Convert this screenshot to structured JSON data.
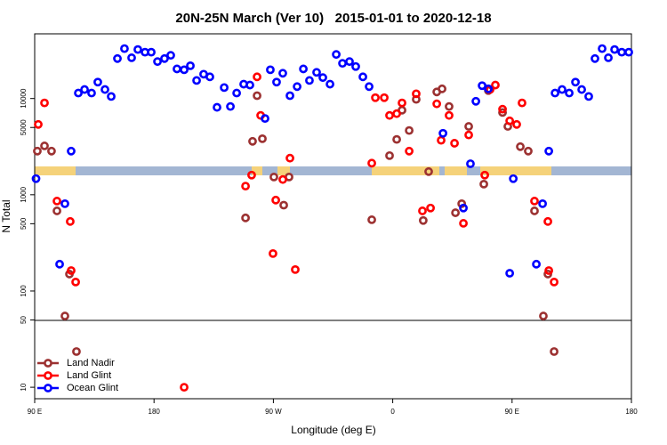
{
  "chart_data": {
    "type": "scatter",
    "title": "20N-25N March (Ver 10)   2015-01-01 to 2020-12-18",
    "x_label": "Longitude (deg E)",
    "y_label": "N Total",
    "log_y": true,
    "legend": "lower left",
    "xlim": [
      90,
      540
    ],
    "xticks": [
      {
        "value": 90,
        "label": "90 E"
      },
      180,
      {
        "value": 270,
        "label": "90 W"
      },
      {
        "value": 360,
        "label": "0"
      },
      {
        "value": 450,
        "label": "90 E"
      },
      {
        "value": 540,
        "label": "180"
      }
    ],
    "ylim": [
      7.6,
      47000
    ],
    "yticks": [
      10,
      50,
      100,
      500,
      1000,
      5000,
      10000
    ],
    "series": [
      {
        "name": "Land Nadir",
        "color": "#9c3131",
        "x": [
          92,
          97.4,
          102.7,
          106.8,
          112.8,
          116.2,
          121.5,
          249,
          254.3,
          257.7,
          261.7,
          270.4,
          277.8,
          281.8,
          344.2,
          357.6,
          363,
          367,
          372.4,
          377.7,
          387.1,
          383,
          393.2,
          397.2,
          402.5,
          407.3,
          412,
          417.3,
          428.7,
          432.1,
          442.8,
          446.8,
          456.2,
          462.2,
          466.9,
          473.6,
          477,
          481.7
        ],
        "values": [
          2840,
          3220,
          2840,
          680,
          55,
          150,
          23.5,
          575,
          3590,
          10700,
          3820,
          1530,
          780,
          1530,
          550,
          2550,
          3760,
          7560,
          4650,
          9800,
          1740,
          540,
          11700,
          12600,
          8260,
          650,
          807,
          5130,
          1290,
          12100,
          7160,
          5130,
          3160,
          2840,
          680,
          55,
          150,
          23.5
        ]
      },
      {
        "name": "Land Glint",
        "color": "#ff0000",
        "x": [
          92.7,
          97.4,
          106.8,
          116.8,
          117.5,
          120.9,
          202.7,
          249,
          253.6,
          257.7,
          260.4,
          271.8,
          269.7,
          277.1,
          282.5,
          286.5,
          344.2,
          346.9,
          353.6,
          357.6,
          363,
          367,
          372.4,
          377.7,
          382.4,
          388.5,
          393.2,
          396.5,
          402.5,
          406.6,
          413.3,
          417.3,
          429.4,
          433.4,
          437.4,
          442.8,
          448.2,
          453.5,
          457.5,
          466.9,
          477,
          477.7,
          481.7
        ],
        "values": [
          5380,
          9000,
          860,
          528,
          163,
          124,
          10,
          1230,
          1600,
          16800,
          6670,
          880,
          245,
          1440,
          2400,
          167,
          2130,
          10200,
          10200,
          6670,
          6960,
          9000,
          2840,
          11200,
          680,
          728,
          8800,
          3680,
          6670,
          3430,
          505,
          4180,
          1600,
          12400,
          13800,
          7750,
          5860,
          5380,
          9000,
          860,
          528,
          163,
          124
        ]
      },
      {
        "name": "Ocean Glint",
        "color": "#0000ff",
        "x": [
          91,
          112.8,
          108.8,
          117.5,
          122.9,
          127.6,
          132.9,
          137.6,
          143,
          147.7,
          152.4,
          157.7,
          163.1,
          167.8,
          173.2,
          177.9,
          182.6,
          187.9,
          192.6,
          197.3,
          202.7,
          207.4,
          212.1,
          217.4,
          222.1,
          227.5,
          232.9,
          237.6,
          242.3,
          247.6,
          252.3,
          263.7,
          267.7,
          272.4,
          277.1,
          282.5,
          287.9,
          292.6,
          297.2,
          302.6,
          307.3,
          312.7,
          317.4,
          322.1,
          327.4,
          332.1,
          337.5,
          342.2,
          397.9,
          413.3,
          418.6,
          422.7,
          427.4,
          432.1,
          450.9,
          448.2,
          468.3,
          473,
          477.7,
          482.4,
          487.7,
          493.1,
          497.8,
          502.5,
          507.8,
          512.5,
          517.9,
          522.6,
          527.3,
          532.7,
          538
        ],
        "values": [
          1470,
          807,
          190,
          2840,
          11400,
          12400,
          11400,
          14800,
          12400,
          10500,
          26000,
          33000,
          26500,
          32300,
          30300,
          30300,
          24200,
          26000,
          28100,
          20300,
          19900,
          21900,
          15400,
          17900,
          16800,
          8100,
          13000,
          8260,
          11400,
          14100,
          13800,
          6200,
          19900,
          14800,
          18300,
          10700,
          13300,
          20300,
          15400,
          18700,
          16500,
          14100,
          28700,
          23200,
          24200,
          21500,
          16800,
          13300,
          4350,
          728,
          2100,
          9360,
          13600,
          12600,
          1470,
          153,
          190,
          807,
          2840,
          11400,
          12400,
          11400,
          14800,
          12400,
          10500,
          26000,
          33000,
          26500,
          32300,
          30300,
          30300
        ]
      }
    ]
  }
}
